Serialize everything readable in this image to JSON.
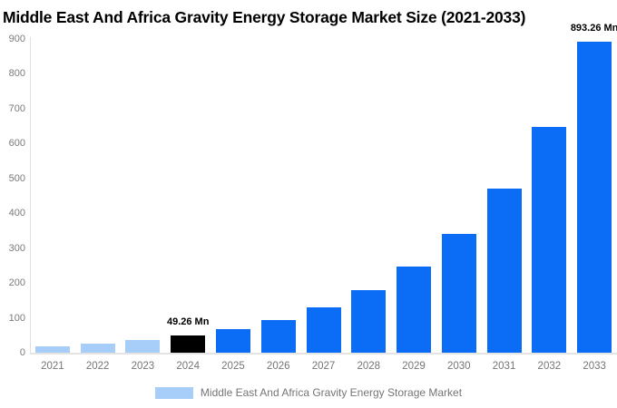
{
  "page": {
    "title": "Middle East And Africa Gravity Energy Storage Market Size (2021-2033)"
  },
  "legend": {
    "label": "Middle East And Africa Gravity Energy Storage Market"
  },
  "chart_data": {
    "type": "bar",
    "title": "Middle East And Africa Gravity Energy Storage Market Size (2021-2033)",
    "categories": [
      "2021",
      "2022",
      "2023",
      "2024",
      "2025",
      "2026",
      "2027",
      "2028",
      "2029",
      "2030",
      "2031",
      "2032",
      "2033"
    ],
    "values": [
      18.7,
      25.9,
      35.7,
      49.26,
      67.98,
      93.81,
      129.46,
      178.65,
      246.54,
      340.22,
      469.51,
      647.93,
      893.26
    ],
    "bar_colors": [
      "#a7cdf9",
      "#a7cdf9",
      "#a7cdf9",
      "#000000",
      "#0b6df6",
      "#0b6df6",
      "#0b6df6",
      "#0b6df6",
      "#0b6df6",
      "#0b6df6",
      "#0b6df6",
      "#0b6df6",
      "#0b6df6"
    ],
    "data_labels": [
      {
        "index": 3,
        "text": "49.26 Mn"
      },
      {
        "index": 12,
        "text": "893.26 Mn"
      }
    ],
    "yticks": [
      0,
      100,
      200,
      300,
      400,
      500,
      600,
      700,
      800,
      900
    ],
    "ylim": [
      0,
      900
    ],
    "xlabel": "",
    "ylabel": "",
    "grid": false,
    "legend_position": "bottom",
    "legend_entries": [
      "Middle East And Africa Gravity Energy Storage Market"
    ],
    "colors": {
      "historical": "#a7cdf9",
      "base_year": "#000000",
      "forecast": "#0b6df6",
      "axis_line": "#e0e0e0",
      "tick_text": "#757575",
      "title_text": "#000000"
    }
  }
}
